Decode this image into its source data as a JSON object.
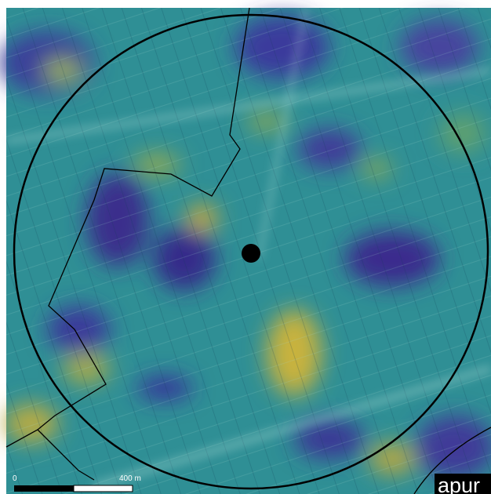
{
  "scale_bar": {
    "start_label": "0",
    "end_label": "400 m"
  },
  "logo": "apur"
}
